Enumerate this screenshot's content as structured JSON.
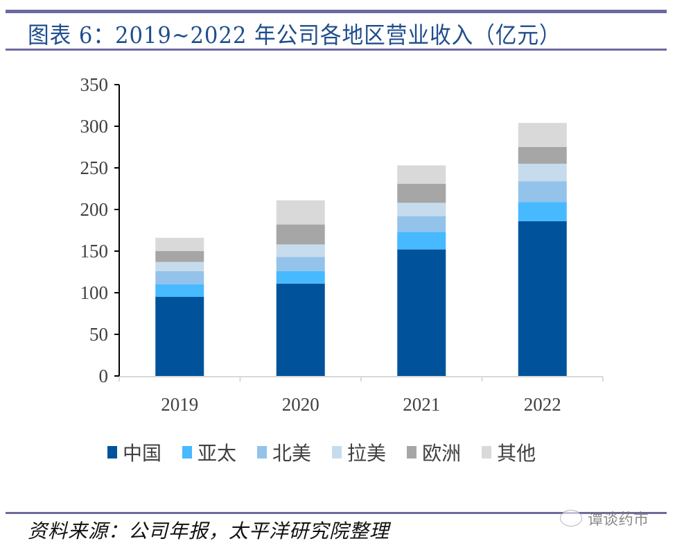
{
  "title": "图表 6：2019~2022 年公司各地区营业收入（亿元）",
  "source": "资料来源：公司年报，太平洋研究院整理",
  "watermark": "谭谈药市",
  "colors": {
    "rule": "#6b6aa0",
    "title": "#1f4e8c"
  },
  "chart_data": {
    "type": "bar",
    "stacked": true,
    "title": "2019~2022 年公司各地区营业收入（亿元）",
    "xlabel": "",
    "ylabel": "",
    "ylim": [
      0,
      350
    ],
    "yticks": [
      "0",
      "50",
      "100",
      "150",
      "200",
      "250",
      "300",
      "350"
    ],
    "categories": [
      "2019",
      "2020",
      "2021",
      "2022"
    ],
    "legend_position": "bottom",
    "grid": false,
    "series": [
      {
        "name": "中国",
        "color": "#00539b",
        "values": [
          95,
          111,
          152,
          186
        ]
      },
      {
        "name": "亚太",
        "color": "#47b9ff",
        "values": [
          15,
          15,
          21,
          23
        ]
      },
      {
        "name": "北美",
        "color": "#93c3ea",
        "values": [
          16,
          17,
          19,
          25
        ]
      },
      {
        "name": "拉美",
        "color": "#c6dcec",
        "values": [
          11,
          15,
          16,
          21
        ]
      },
      {
        "name": "欧洲",
        "color": "#a6a6a6",
        "values": [
          13,
          24,
          23,
          20
        ]
      },
      {
        "name": "其他",
        "color": "#d9d9d9",
        "values": [
          16,
          29,
          22,
          29
        ]
      }
    ]
  }
}
